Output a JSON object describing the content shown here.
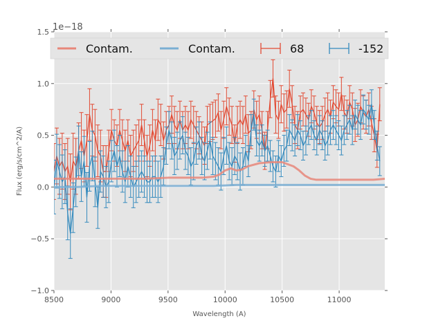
{
  "chart_data": {
    "type": "line",
    "title": "",
    "xlabel": "Wavelength (A)",
    "ylabel": "Flux (erg/s/cm^2/A)",
    "offset_text": "1e−18",
    "xlim": [
      8500,
      11400
    ],
    "ylim": [
      -1.0,
      1.5
    ],
    "xticks": [
      8500,
      9000,
      9500,
      10000,
      10500,
      11000
    ],
    "xtick_labels": [
      "8500",
      "9000",
      "9500",
      "10000",
      "10500",
      "11000"
    ],
    "yticks": [
      -1.0,
      -0.5,
      0.0,
      0.5,
      1.0,
      1.5
    ],
    "ytick_labels": [
      "−1.0",
      "−0.5",
      "0.0",
      "0.5",
      "1.0",
      "1.5"
    ],
    "grid": true,
    "legend_position": "top",
    "legend": [
      {
        "label": "Contam.",
        "kind": "line",
        "color": "#e8877a"
      },
      {
        "label": "Contam.",
        "kind": "line",
        "color": "#7aaed3"
      },
      {
        "label": "68",
        "kind": "errorbar",
        "color": "#e24a33"
      },
      {
        "label": "-152",
        "kind": "errorbar",
        "color": "#348abd"
      }
    ],
    "colors": {
      "red": "#e24a33",
      "blue": "#348abd",
      "red_contam": "#e8877a",
      "blue_contam": "#7aaed3",
      "axes_bg": "#e5e5e5",
      "grid": "#ffffff"
    },
    "series": [
      {
        "name": "Contam.",
        "kind": "contam",
        "color": "#e8877a",
        "x": [
          8500,
          8700,
          8900,
          9100,
          9300,
          9500,
          9700,
          9800,
          9900,
          9950,
          10000,
          10050,
          10100,
          10150,
          10200,
          10300,
          10400,
          10500,
          10550,
          10600,
          10650,
          10700,
          10750,
          10800,
          10900,
          11000,
          11100,
          11200,
          11300,
          11400
        ],
        "values": [
          0.08,
          0.08,
          0.08,
          0.08,
          0.08,
          0.09,
          0.09,
          0.09,
          0.1,
          0.12,
          0.16,
          0.18,
          0.16,
          0.17,
          0.2,
          0.23,
          0.24,
          0.24,
          0.22,
          0.2,
          0.16,
          0.11,
          0.08,
          0.07,
          0.07,
          0.07,
          0.07,
          0.07,
          0.07,
          0.08
        ]
      },
      {
        "name": "Contam.",
        "kind": "contam",
        "color": "#7aaed3",
        "x": [
          8500,
          8700,
          8900,
          9100,
          9300,
          9500,
          9700,
          9900,
          10100,
          10300,
          10500,
          10700,
          10900,
          11100,
          11200,
          11400
        ],
        "values": [
          0.0,
          0.0,
          0.01,
          0.01,
          0.01,
          0.01,
          0.01,
          0.01,
          0.02,
          0.02,
          0.02,
          0.02,
          0.02,
          0.02,
          0.02,
          0.02
        ]
      },
      {
        "name": "68",
        "kind": "errorbar",
        "color": "#e24a33",
        "x_start": 8500,
        "x_step": 24,
        "values": [
          0.15,
          0.3,
          0.2,
          0.25,
          0.15,
          0.2,
          0.05,
          0.25,
          0.2,
          0.35,
          0.45,
          0.3,
          0.45,
          0.7,
          0.55,
          0.5,
          0.35,
          0.3,
          0.15,
          0.15,
          0.35,
          0.55,
          0.45,
          0.4,
          0.55,
          0.45,
          0.35,
          0.45,
          0.3,
          0.35,
          0.4,
          0.45,
          0.6,
          0.45,
          0.3,
          0.4,
          0.55,
          0.45,
          0.65,
          0.6,
          0.45,
          0.55,
          0.6,
          0.7,
          0.6,
          0.55,
          0.65,
          0.55,
          0.6,
          0.55,
          0.65,
          0.6,
          0.55,
          0.5,
          0.45,
          0.4,
          0.6,
          0.62,
          0.64,
          0.66,
          0.72,
          0.55,
          0.65,
          0.78,
          0.68,
          0.6,
          0.42,
          0.6,
          0.65,
          0.6,
          0.7,
          0.52,
          0.55,
          0.75,
          0.65,
          0.7,
          0.55,
          0.35,
          0.55,
          0.85,
          1.05,
          0.7,
          0.65,
          0.8,
          0.72,
          0.75,
          0.95,
          0.8,
          0.6,
          0.55,
          0.72,
          0.75,
          0.7,
          0.65,
          0.78,
          0.72,
          0.62,
          0.58,
          0.62,
          0.7,
          0.75,
          0.68,
          0.82,
          0.78,
          0.75,
          0.9,
          0.72,
          0.68,
          0.82,
          0.75,
          0.6,
          0.65,
          0.78,
          0.72,
          0.68,
          0.75,
          0.62,
          0.5,
          0.35,
          0.8
        ],
        "errors": [
          0.27,
          0.27,
          0.27,
          0.27,
          0.27,
          0.27,
          0.27,
          0.27,
          0.27,
          0.27,
          0.27,
          0.25,
          0.25,
          0.25,
          0.25,
          0.25,
          0.25,
          0.25,
          0.25,
          0.25,
          0.2,
          0.2,
          0.2,
          0.2,
          0.2,
          0.2,
          0.2,
          0.2,
          0.2,
          0.2,
          0.2,
          0.2,
          0.2,
          0.2,
          0.2,
          0.2,
          0.2,
          0.2,
          0.2,
          0.2,
          0.18,
          0.18,
          0.18,
          0.18,
          0.18,
          0.18,
          0.18,
          0.18,
          0.18,
          0.18,
          0.18,
          0.18,
          0.18,
          0.18,
          0.18,
          0.18,
          0.18,
          0.18,
          0.18,
          0.18,
          0.18,
          0.18,
          0.18,
          0.18,
          0.18,
          0.18,
          0.18,
          0.18,
          0.18,
          0.18,
          0.18,
          0.18,
          0.18,
          0.18,
          0.18,
          0.18,
          0.18,
          0.18,
          0.18,
          0.18,
          0.18,
          0.18,
          0.18,
          0.18,
          0.18,
          0.18,
          0.18,
          0.18,
          0.18,
          0.18,
          0.16,
          0.16,
          0.16,
          0.16,
          0.16,
          0.16,
          0.16,
          0.16,
          0.16,
          0.16,
          0.16,
          0.16,
          0.16,
          0.16,
          0.16,
          0.16,
          0.16,
          0.16,
          0.16,
          0.16,
          0.16,
          0.16,
          0.16,
          0.16,
          0.16,
          0.16,
          0.16,
          0.16,
          0.16,
          0.16
        ]
      },
      {
        "name": "-152",
        "kind": "errorbar",
        "color": "#348abd",
        "x_start": 8500,
        "x_step": 24,
        "values": [
          0.0,
          0.25,
          0.15,
          0.05,
          0.1,
          -0.25,
          -0.45,
          -0.2,
          0.05,
          0.35,
          0.1,
          0.25,
          -0.1,
          0.2,
          0.3,
          0.05,
          -0.2,
          0.15,
          0.1,
          0.0,
          0.05,
          0.25,
          0.35,
          0.2,
          0.3,
          0.15,
          0.05,
          0.2,
          0.1,
          0.0,
          0.05,
          0.1,
          0.15,
          0.1,
          0.05,
          0.05,
          0.1,
          0.1,
          0.05,
          0.1,
          0.2,
          0.4,
          0.55,
          0.45,
          0.3,
          0.35,
          0.45,
          0.5,
          0.35,
          0.3,
          0.2,
          0.25,
          0.4,
          0.45,
          0.3,
          0.25,
          0.35,
          0.45,
          0.3,
          0.25,
          0.2,
          0.15,
          0.3,
          0.4,
          0.25,
          0.2,
          0.3,
          0.25,
          0.15,
          0.2,
          0.35,
          0.25,
          0.55,
          0.7,
          0.45,
          0.4,
          0.45,
          0.35,
          0.4,
          0.3,
          0.2,
          0.15,
          0.3,
          0.25,
          0.35,
          0.4,
          0.55,
          0.5,
          0.45,
          0.55,
          0.5,
          0.4,
          0.45,
          0.55,
          0.6,
          0.5,
          0.45,
          0.55,
          0.5,
          0.4,
          0.45,
          0.55,
          0.6,
          0.55,
          0.5,
          0.45,
          0.55,
          0.6,
          0.65,
          0.55,
          0.7,
          0.65,
          0.6,
          0.75,
          0.7,
          0.65,
          0.8,
          0.6,
          0.4,
          0.25
        ],
        "errors": [
          0.26,
          0.26,
          0.26,
          0.26,
          0.26,
          0.26,
          0.24,
          0.24,
          0.24,
          0.24,
          0.24,
          0.24,
          0.24,
          0.24,
          0.24,
          0.24,
          0.2,
          0.2,
          0.2,
          0.2,
          0.2,
          0.2,
          0.2,
          0.2,
          0.2,
          0.2,
          0.2,
          0.2,
          0.2,
          0.2,
          0.2,
          0.2,
          0.2,
          0.2,
          0.2,
          0.2,
          0.2,
          0.2,
          0.2,
          0.2,
          0.18,
          0.18,
          0.18,
          0.18,
          0.18,
          0.18,
          0.18,
          0.18,
          0.18,
          0.18,
          0.18,
          0.18,
          0.18,
          0.18,
          0.18,
          0.18,
          0.18,
          0.18,
          0.18,
          0.18,
          0.18,
          0.18,
          0.18,
          0.18,
          0.18,
          0.18,
          0.18,
          0.18,
          0.18,
          0.18,
          0.15,
          0.15,
          0.15,
          0.15,
          0.15,
          0.15,
          0.15,
          0.15,
          0.15,
          0.15,
          0.15,
          0.15,
          0.15,
          0.15,
          0.15,
          0.15,
          0.15,
          0.15,
          0.15,
          0.15,
          0.14,
          0.14,
          0.14,
          0.14,
          0.14,
          0.14,
          0.14,
          0.14,
          0.14,
          0.14,
          0.14,
          0.14,
          0.14,
          0.14,
          0.14,
          0.14,
          0.14,
          0.14,
          0.14,
          0.14,
          0.14,
          0.14,
          0.14,
          0.14,
          0.14,
          0.14,
          0.14,
          0.14,
          0.14,
          0.14
        ]
      }
    ]
  }
}
